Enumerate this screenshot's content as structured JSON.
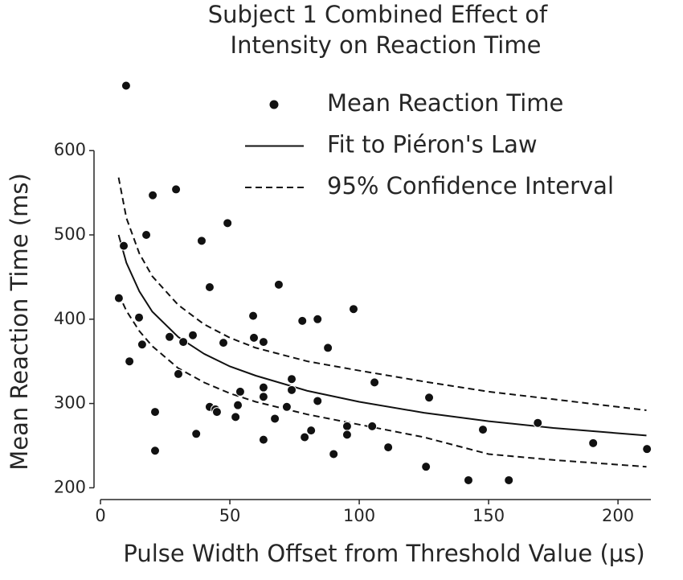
{
  "chart_data": {
    "type": "scatter",
    "title": [
      "Subject 1 Combined Effect of",
      "Intensity on Reaction Time"
    ],
    "xlabel": "Pulse Width Offset from Threshold Value (μs)",
    "ylabel": "Mean Reaction Time (ms)",
    "xlim": [
      -2.5,
      212.7
    ],
    "ylim": [
      187,
      688
    ],
    "xticks": [
      0,
      50,
      100,
      150,
      200
    ],
    "yticks": [
      200,
      300,
      400,
      500,
      600
    ],
    "legend": "upper right",
    "series": [
      {
        "name": "Mean Reaction Time",
        "kind": "scatter",
        "color": "#111111",
        "x": [
          9.9,
          9,
          7.1,
          11.2,
          14.9,
          16.1,
          17.7,
          20.2,
          21.1,
          21.1,
          29.2,
          26.7,
          30.1,
          32,
          35.7,
          37,
          39.1,
          42.2,
          42.2,
          44.4,
          45,
          47.5,
          49.1,
          52.2,
          53.1,
          54,
          59,
          59.3,
          63,
          63,
          63,
          63,
          67.4,
          68.9,
          72,
          73.9,
          73.9,
          78,
          78.9,
          81.4,
          83.9,
          83.9,
          87.9,
          90.1,
          95.3,
          95.3,
          97.8,
          105.9,
          105,
          111.2,
          125.8,
          127,
          142.2,
          147.8,
          157.8,
          169,
          190.4,
          211.2
        ],
        "values": [
          677,
          487,
          425,
          350,
          402,
          370,
          500,
          547,
          290,
          244,
          554,
          379,
          335,
          373,
          381,
          264,
          493,
          438,
          296,
          293,
          290,
          372,
          514,
          284,
          298,
          314,
          404,
          378,
          373,
          319,
          308,
          257,
          282,
          441,
          296,
          329,
          316,
          398,
          260,
          268,
          400,
          303,
          366,
          240,
          273,
          263,
          412,
          325,
          273,
          248,
          225,
          307,
          209,
          269,
          209,
          277,
          253,
          246
        ]
      },
      {
        "name": "Fit to Piéron's Law",
        "kind": "line",
        "color": "#111111",
        "x": [
          7,
          10,
          15,
          20,
          30,
          40,
          50,
          60,
          80,
          100,
          125,
          150,
          175,
          211
        ],
        "values": [
          500,
          467,
          433,
          409,
          379,
          359,
          344,
          333,
          315,
          302,
          289,
          279,
          271,
          262
        ]
      },
      {
        "name": "95% Confidence Interval",
        "kind": "band",
        "dashed": true,
        "color": "#111111",
        "x": [
          7,
          10,
          15,
          20,
          30,
          40,
          50,
          60,
          80,
          100,
          125,
          150,
          175,
          211
        ],
        "upper": [
          568,
          520,
          478,
          451,
          417,
          394,
          378,
          366,
          350,
          339,
          326,
          314,
          305,
          292
        ],
        "lower": [
          430,
          410,
          386,
          368,
          342,
          325,
          312,
          302,
          287,
          275,
          260,
          240,
          233,
          225
        ]
      }
    ]
  }
}
